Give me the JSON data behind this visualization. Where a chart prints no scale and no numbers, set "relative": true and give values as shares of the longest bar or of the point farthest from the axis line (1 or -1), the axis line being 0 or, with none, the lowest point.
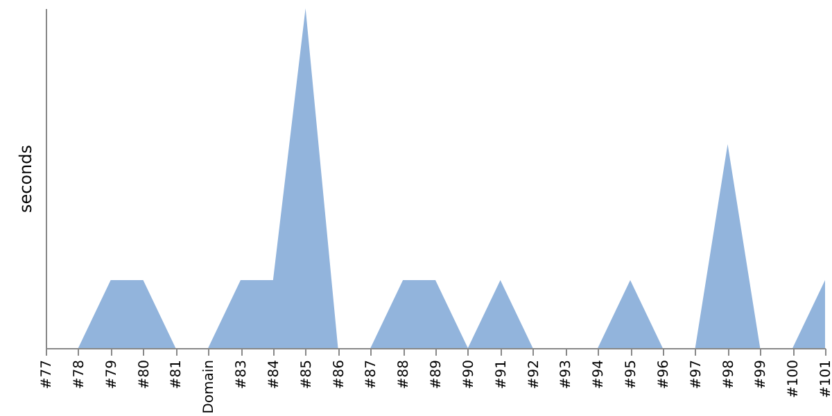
{
  "chart_data": {
    "type": "area",
    "ylabel": "seconds",
    "relative": true,
    "color": "#92b4dc",
    "categories": [
      "#77",
      "#78",
      "#79",
      "#80",
      "#81",
      "Domain",
      "#83",
      "#84",
      "#85",
      "#86",
      "#87",
      "#88",
      "#89",
      "#90",
      "#91",
      "#92",
      "#93",
      "#94",
      "#95",
      "#96",
      "#97",
      "#98",
      "#99",
      "#100",
      "#101"
    ],
    "values": [
      0,
      0,
      0.2,
      0.2,
      0,
      0,
      0.2,
      0.2,
      1,
      0,
      0,
      0.2,
      0.2,
      0,
      0.2,
      0,
      0,
      0,
      0.2,
      0,
      0,
      0.6,
      0,
      0,
      0.2
    ]
  }
}
